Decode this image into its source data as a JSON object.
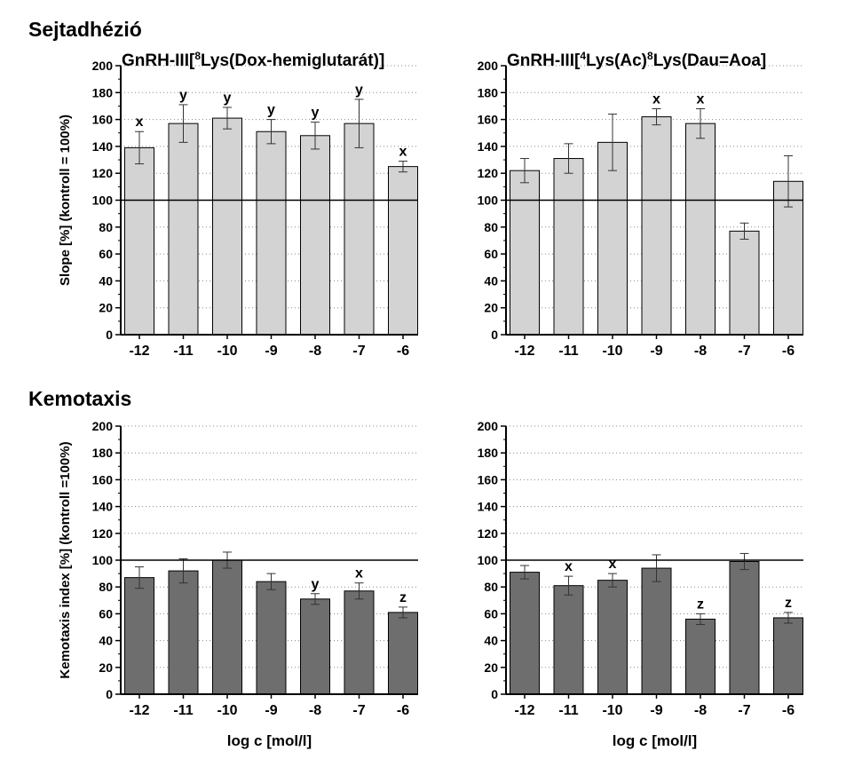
{
  "sections": {
    "adhesion_title": "Sejtadhézió",
    "chemotaxis_title": "Kemotaxis"
  },
  "colors": {
    "adhesion_bar": "#d3d3d3",
    "chemotaxis_bar": "#6e6e6e",
    "axis": "#000000",
    "grid": "#888888"
  },
  "chart_data": [
    {
      "type": "bar",
      "title": "GnRH-III[8Lys(Dox-hemiglutarát)]",
      "title_parts": {
        "pre": "GnRH-III[",
        "sup1": "8",
        "post": "Lys(Dox-hemiglutarát)]"
      },
      "ylabel": "Slope [%] (kontroll = 100%)",
      "xlabel": "",
      "ylim": [
        0,
        200
      ],
      "yticks": [
        0,
        20,
        40,
        60,
        80,
        100,
        120,
        140,
        160,
        180,
        200
      ],
      "grid": "dotted horizontal",
      "reference_line": 100,
      "categories": [
        "-12",
        "-11",
        "-10",
        "-9",
        "-8",
        "-7",
        "-6"
      ],
      "values": [
        139,
        157,
        161,
        151,
        148,
        157,
        125
      ],
      "errors": [
        12,
        14,
        8,
        9,
        10,
        18,
        4
      ],
      "annotations": [
        "x",
        "y",
        "y",
        "y",
        "y",
        "y",
        "x"
      ]
    },
    {
      "type": "bar",
      "title": "GnRH-III[4Lys(Ac)8Lys(Dau=Aoa]",
      "title_parts": {
        "pre": "GnRH-III[",
        "sup1": "4",
        "mid": "Lys(Ac)",
        "sup2": "8",
        "post": "Lys(Dau=Aoa]"
      },
      "ylabel": "",
      "xlabel": "",
      "ylim": [
        0,
        200
      ],
      "yticks": [
        0,
        20,
        40,
        60,
        80,
        100,
        120,
        140,
        160,
        180,
        200
      ],
      "grid": "dotted horizontal",
      "reference_line": 100,
      "categories": [
        "-12",
        "-11",
        "-10",
        "-9",
        "-8",
        "-7",
        "-6"
      ],
      "values": [
        122,
        131,
        143,
        162,
        157,
        77,
        114
      ],
      "errors": [
        9,
        11,
        21,
        6,
        11,
        6,
        19
      ],
      "annotations": [
        "",
        "",
        "",
        "x",
        "x",
        "",
        ""
      ]
    },
    {
      "type": "bar",
      "title": "",
      "ylabel": "Kemotaxis index [%] (kontroll =100%)",
      "xlabel": "log c [mol/l]",
      "ylim": [
        0,
        200
      ],
      "yticks": [
        0,
        20,
        40,
        60,
        80,
        100,
        120,
        140,
        160,
        180,
        200
      ],
      "grid": "dotted horizontal",
      "reference_line": 100,
      "categories": [
        "-12",
        "-11",
        "-10",
        "-9",
        "-8",
        "-7",
        "-6"
      ],
      "values": [
        87,
        92,
        100,
        84,
        71,
        77,
        61
      ],
      "errors": [
        8,
        9,
        6,
        6,
        4,
        6,
        4
      ],
      "annotations": [
        "",
        "",
        "",
        "",
        "y",
        "x",
        "z"
      ]
    },
    {
      "type": "bar",
      "title": "",
      "ylabel": "",
      "xlabel": "log c [mol/l]",
      "ylim": [
        0,
        200
      ],
      "yticks": [
        0,
        20,
        40,
        60,
        80,
        100,
        120,
        140,
        160,
        180,
        200
      ],
      "grid": "dotted horizontal",
      "reference_line": 100,
      "categories": [
        "-12",
        "-11",
        "-10",
        "-9",
        "-8",
        "-7",
        "-6"
      ],
      "values": [
        91,
        81,
        85,
        94,
        56,
        99,
        57
      ],
      "errors": [
        5,
        7,
        5,
        10,
        4,
        6,
        4
      ],
      "annotations": [
        "",
        "x",
        "x",
        "",
        "z",
        "",
        "z"
      ]
    }
  ]
}
